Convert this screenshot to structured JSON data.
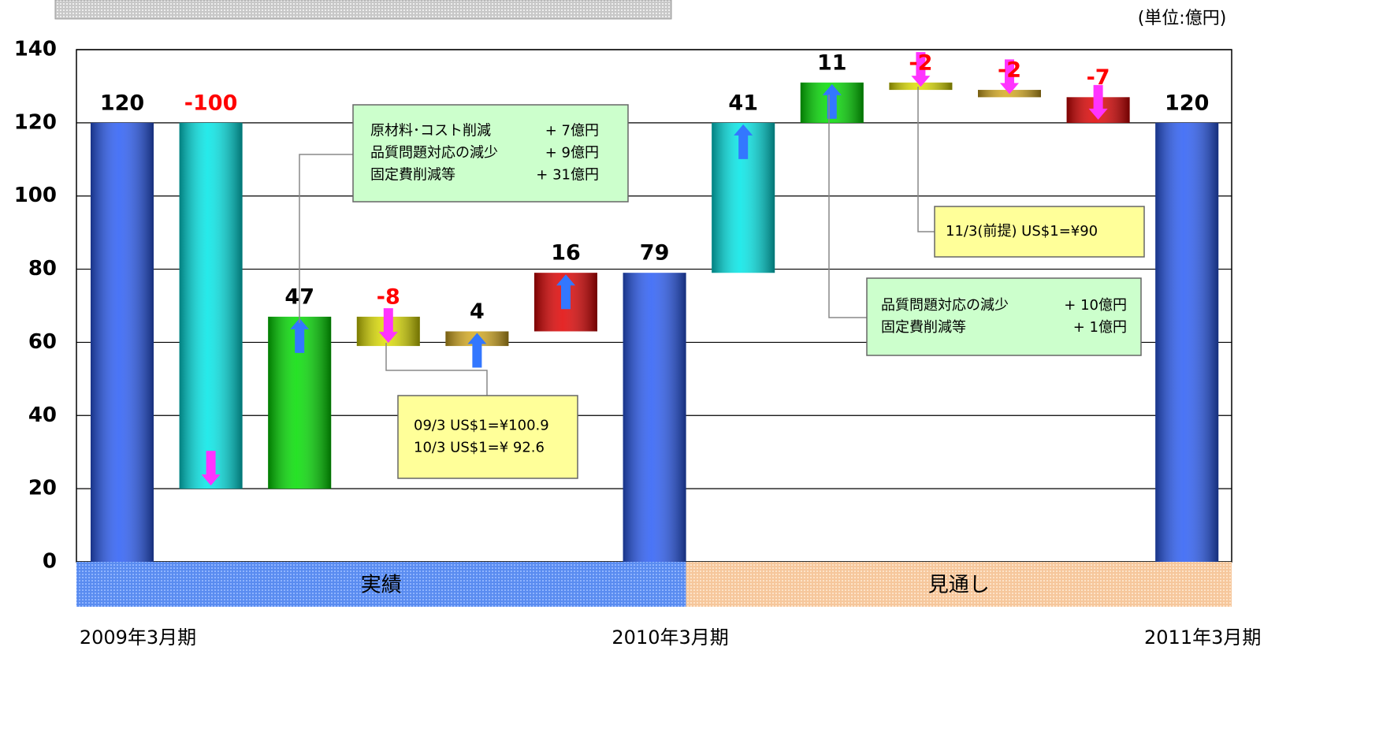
{
  "chart_data": {
    "type": "waterfall",
    "unit": "(単位:億円)",
    "categories": [
      "2009年3月期",
      null,
      null,
      null,
      null,
      null,
      "2010年3月期",
      null,
      null,
      null,
      null,
      null,
      "2011年3月期"
    ],
    "values": [
      120,
      -100,
      47,
      -8,
      4,
      16,
      79,
      41,
      11,
      -2,
      -2,
      -7,
      120
    ],
    "totals": [
      true,
      false,
      false,
      false,
      false,
      false,
      true,
      false,
      false,
      false,
      false,
      false,
      true
    ],
    "colors": [
      "#2a5cf5",
      "#00e6e6",
      "#00dd00",
      "#dede00",
      "#d6aa1e",
      "#e00000",
      "#2a5cf5",
      "#00e6e6",
      "#00dd00",
      "#dede00",
      "#d6aa1e",
      "#e00000",
      "#2a5cf5"
    ],
    "negative_label_color": "#ff0000",
    "positive_label_color": "#000000",
    "ylim": [
      0,
      140
    ],
    "yticks": [
      0,
      20,
      40,
      60,
      80,
      100,
      120,
      140
    ],
    "grid": true,
    "bands": [
      {
        "label": "実績"
      },
      {
        "label": "見通し"
      }
    ],
    "annotations": [
      {
        "rows": [
          [
            "原材料･コスト削減",
            "+ 7億円"
          ],
          [
            "品質問題対応の減少",
            "+ 9億円"
          ],
          [
            "固定費削減等",
            "+ 31億円"
          ]
        ]
      },
      {
        "rows": [
          [
            "09/3 US$1=¥100.9"
          ],
          [
            "10/3 US$1=¥  92.6"
          ]
        ]
      },
      {
        "rows": [
          [
            "11/3(前提) US$1=¥90"
          ]
        ]
      },
      {
        "rows": [
          [
            "品質問題対応の減少",
            "+ 10億円"
          ],
          [
            "固定費削減等",
            "+ 1億円"
          ]
        ]
      }
    ]
  }
}
